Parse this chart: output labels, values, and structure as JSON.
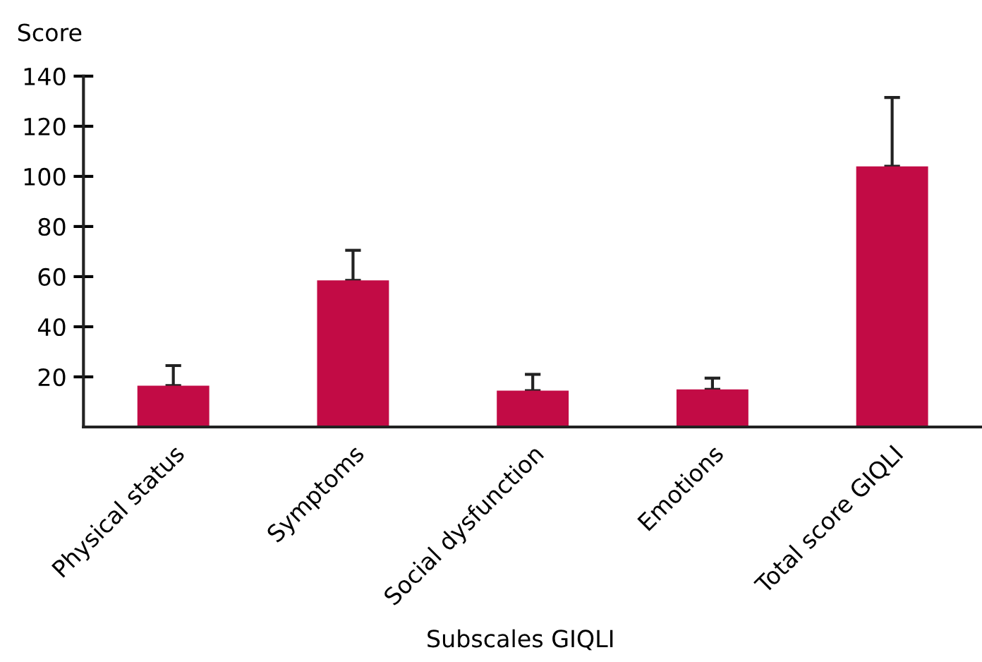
{
  "chart_data": {
    "type": "bar",
    "ylabel": "Score",
    "xlabel": "Subscales GIQLI",
    "categories": [
      "Physical status",
      "Symptoms",
      "Social dysfunction",
      "Emotions",
      "Total score GIQLI"
    ],
    "values": [
      16.5,
      58.5,
      14.5,
      15,
      104
    ],
    "errors": [
      [
        16.5,
        24.5
      ],
      [
        58.5,
        70.5
      ],
      [
        14.5,
        21
      ],
      [
        15,
        19.5
      ],
      [
        104,
        131.5
      ]
    ],
    "color": "#c20b45",
    "ylim": [
      0,
      140
    ],
    "yticks": [
      20,
      40,
      60,
      80,
      100,
      120,
      140
    ],
    "grid": false,
    "legend": false
  }
}
